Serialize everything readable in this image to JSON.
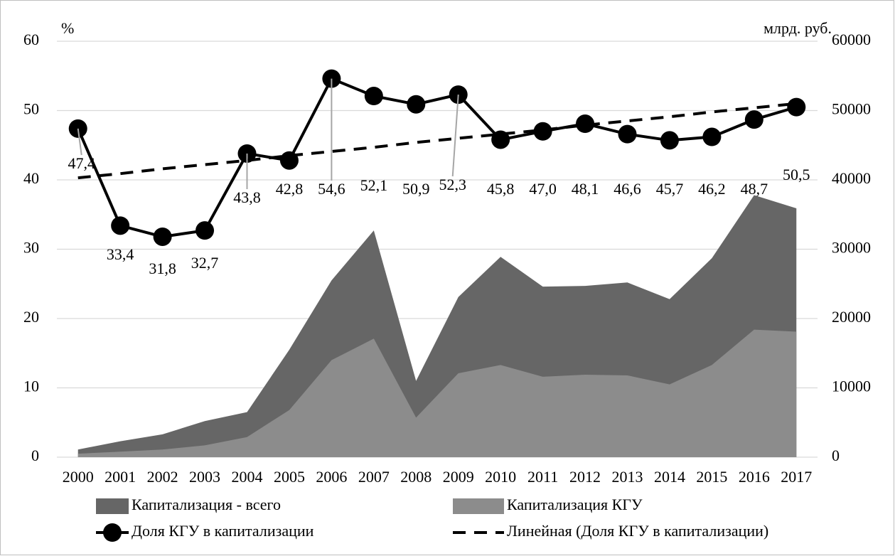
{
  "chart_data": {
    "type": "combo",
    "y_label": "%",
    "y2_label": "млрд. руб.",
    "categories": [
      "2000",
      "2001",
      "2002",
      "2003",
      "2004",
      "2005",
      "2006",
      "2007",
      "2008",
      "2009",
      "2010",
      "2011",
      "2012",
      "2013",
      "2014",
      "2015",
      "2016",
      "2017"
    ],
    "series": [
      {
        "name": "Капитализация - всего",
        "kind": "area",
        "axis": "y2",
        "color": "#666666",
        "values": [
          1100,
          2300,
          3300,
          5200,
          6500,
          15500,
          25500,
          32700,
          11000,
          23100,
          28900,
          24600,
          24700,
          25200,
          22800,
          28700,
          37800,
          35900
        ]
      },
      {
        "name": "Капитализация КГУ",
        "kind": "area",
        "axis": "y2",
        "color": "#8c8c8c",
        "values": [
          500,
          800,
          1100,
          1700,
          2900,
          6800,
          14000,
          17100,
          5700,
          12100,
          13300,
          11600,
          11900,
          11800,
          10500,
          13300,
          18400,
          18100
        ]
      },
      {
        "name": "Доля КГУ в капитализации",
        "kind": "line",
        "color": "#000000",
        "markers": true,
        "values": [
          47.4,
          33.4,
          31.8,
          32.7,
          43.8,
          42.8,
          54.6,
          52.1,
          50.9,
          52.3,
          45.8,
          47.0,
          48.1,
          46.6,
          45.7,
          46.2,
          48.7,
          50.5
        ],
        "value_labels": [
          "47,4",
          "33,4",
          "31,8",
          "32,7",
          "43,8",
          "42,8",
          "54,6",
          "52,1",
          "50,9",
          "52,3",
          "45,8",
          "47,0",
          "48,1",
          "46,6",
          "45,7",
          "46,2",
          "48,7",
          "50,5"
        ]
      },
      {
        "name": "Линейная (Доля КГУ в капитализации)",
        "kind": "line",
        "color": "#000000",
        "dashed": true,
        "values": [
          40.3,
          40.9,
          41.6,
          42.2,
          42.8,
          43.5,
          44.1,
          44.7,
          45.4,
          46.0,
          46.6,
          47.2,
          47.9,
          48.5,
          49.1,
          49.8,
          50.4,
          51.0
        ]
      }
    ],
    "ylim": [
      0,
      60
    ],
    "yticks": [
      0,
      10,
      20,
      30,
      40,
      50,
      60
    ],
    "y2lim": [
      0,
      60000
    ],
    "y2ticks": [
      0,
      10000,
      20000,
      30000,
      40000,
      50000,
      60000
    ],
    "grid": true,
    "legend": "bottom"
  }
}
